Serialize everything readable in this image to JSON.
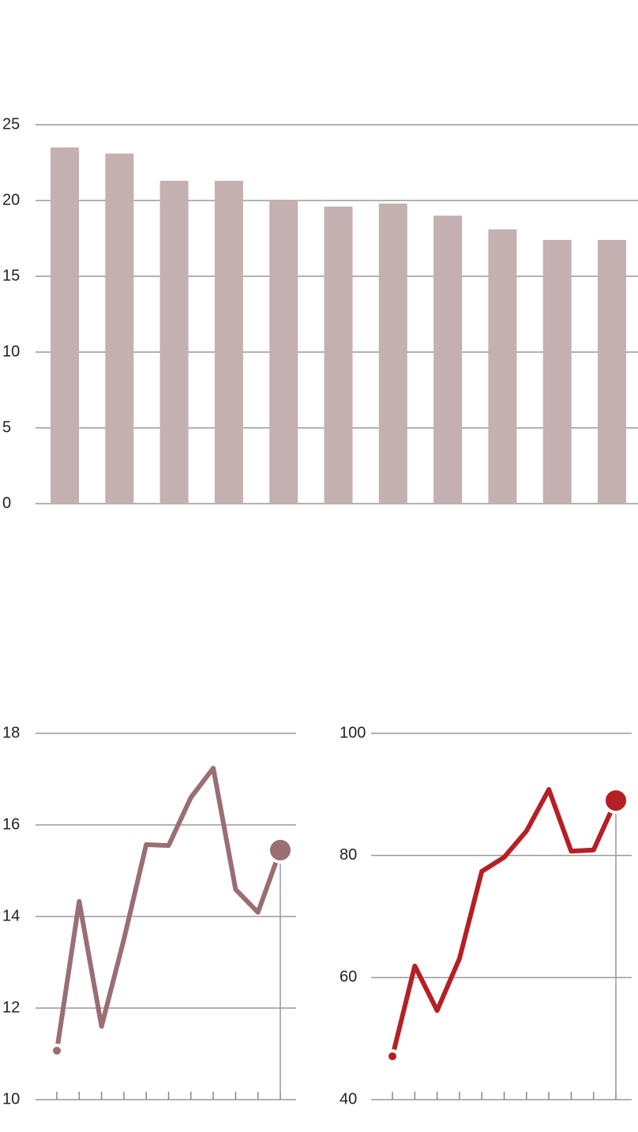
{
  "chart_data": [
    {
      "type": "bar",
      "categories": [
        null,
        null,
        null,
        null,
        null,
        null,
        null,
        null,
        null,
        null,
        null
      ],
      "values": [
        23.5,
        23.1,
        21.3,
        21.3,
        20.05,
        19.6,
        19.8,
        19.0,
        18.1,
        17.4,
        17.4
      ],
      "color": "#c4b0b0",
      "ylim": [
        0,
        25
      ],
      "yticks": [
        0,
        5,
        10,
        15,
        20,
        25
      ],
      "grid": true
    },
    {
      "type": "line",
      "categories": [
        null,
        null,
        null,
        null,
        null,
        null,
        null,
        null,
        null,
        null,
        null
      ],
      "values": [
        11.07,
        14.33,
        11.6,
        13.5,
        15.57,
        15.55,
        16.6,
        17.24,
        14.59,
        14.09,
        15.45
      ],
      "color": "#9a6e72",
      "ylim": [
        10,
        18
      ],
      "yticks": [
        10,
        12,
        14,
        16,
        18
      ],
      "grid": true
    },
    {
      "type": "line",
      "categories": [
        null,
        null,
        null,
        null,
        null,
        null,
        null,
        null,
        null,
        null,
        null
      ],
      "values": [
        47.1,
        61.9,
        54.6,
        63.1,
        77.4,
        79.7,
        84,
        90.8,
        80.7,
        80.9,
        89
      ],
      "color": "#b52025",
      "ylim": [
        40,
        100
      ],
      "yticks": [
        40,
        60,
        80,
        100
      ],
      "grid": true
    }
  ]
}
